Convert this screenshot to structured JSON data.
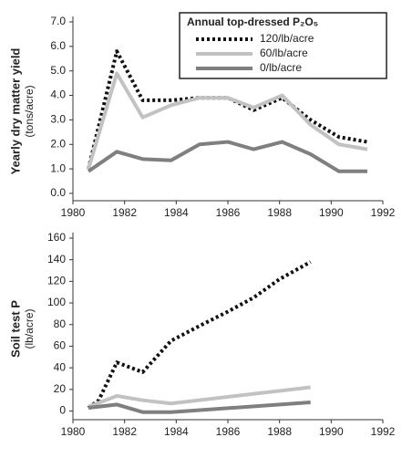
{
  "chart_data": [
    {
      "type": "line",
      "ylabel": "Yearly dry matter yield",
      "ylabel_unit": "(tons/acre)",
      "legend_title": "Annual top-dressed P₂O₅",
      "legend": "upper right",
      "xlim": [
        1980,
        1992
      ],
      "xticks": [
        1980,
        1982,
        1984,
        1986,
        1988,
        1990,
        1992
      ],
      "ylim": [
        -0.3,
        7
      ],
      "yticks": [
        {
          "value": 0,
          "label": "0.0"
        },
        {
          "value": 1,
          "label": "1.0"
        },
        {
          "value": 2,
          "label": "2.0"
        },
        {
          "value": 3,
          "label": "3.0"
        },
        {
          "value": 4,
          "label": "4.0"
        },
        {
          "value": 5,
          "label": "5.0"
        },
        {
          "value": 6,
          "label": "6.0"
        },
        {
          "value": 7,
          "label": "7.0"
        }
      ],
      "series": [
        {
          "name": "120/lb/acre",
          "color": "#111111",
          "dashed": true,
          "x": [
            1980.6,
            1981.7,
            1982.7,
            1983.8,
            1984.9,
            1986,
            1987,
            1988.1,
            1989.2,
            1990.3,
            1991.4
          ],
          "values": [
            1.0,
            5.8,
            3.8,
            3.8,
            3.9,
            3.9,
            3.4,
            3.9,
            3.0,
            2.3,
            2.1
          ]
        },
        {
          "name": "60/lb/acre",
          "color": "#c2c2c2",
          "dashed": false,
          "x": [
            1980.6,
            1981.7,
            1982.7,
            1983.8,
            1984.9,
            1986,
            1987,
            1988.1,
            1989.2,
            1990.3,
            1991.4
          ],
          "values": [
            1.0,
            4.9,
            3.1,
            3.6,
            3.9,
            3.9,
            3.5,
            4.0,
            2.8,
            2.0,
            1.8
          ]
        },
        {
          "name": "0/lb/acre",
          "color": "#7f7f7f",
          "dashed": false,
          "x": [
            1980.6,
            1981.7,
            1982.7,
            1983.8,
            1984.9,
            1986,
            1987,
            1988.1,
            1989.2,
            1990.3,
            1991.4
          ],
          "values": [
            0.9,
            1.7,
            1.4,
            1.35,
            2.0,
            2.1,
            1.8,
            2.1,
            1.6,
            0.9,
            0.9
          ]
        }
      ]
    },
    {
      "type": "line",
      "ylabel": "Soil test P",
      "ylabel_unit": "(lb/acre)",
      "xlim": [
        1980,
        1992
      ],
      "xticks": [
        1980,
        1982,
        1984,
        1986,
        1988,
        1990,
        1992
      ],
      "ylim": [
        -8,
        160
      ],
      "yticks": [
        0,
        20,
        40,
        60,
        80,
        100,
        120,
        140,
        160
      ],
      "series": [
        {
          "color": "#111111",
          "dashed": true,
          "x": [
            1980.6,
            1981,
            1981.7,
            1982.7,
            1983.8,
            1985,
            1986,
            1987,
            1988,
            1989.2
          ],
          "values": [
            3,
            10,
            45,
            36,
            65,
            80,
            92,
            105,
            122,
            138
          ]
        },
        {
          "color": "#c2c2c2",
          "dashed": false,
          "x": [
            1980.6,
            1981.7,
            1982.7,
            1983.8,
            1989.2
          ],
          "values": [
            4,
            14,
            10,
            7,
            22
          ]
        },
        {
          "color": "#7f7f7f",
          "dashed": false,
          "x": [
            1980.6,
            1981.7,
            1982.7,
            1983.8,
            1989.2
          ],
          "values": [
            3,
            6,
            -1,
            -1,
            8
          ]
        }
      ]
    }
  ]
}
